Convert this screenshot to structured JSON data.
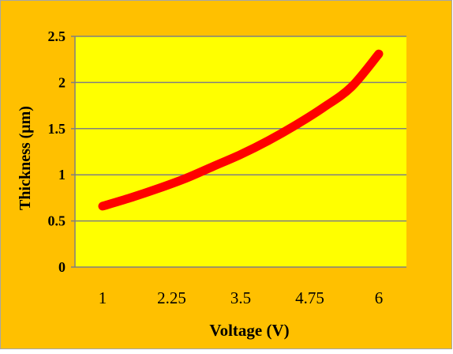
{
  "colors": {
    "chart_area": "#FFC000",
    "plot_area": "#FFFF00",
    "line": "#FF0000",
    "grid": "#808080",
    "border": "#A6A6A6",
    "text": "#000000"
  },
  "chart_data": {
    "type": "line",
    "xlabel": "Voltage (V)",
    "ylabel": "Thickness (μm)",
    "x_tick_labels": [
      "1",
      "2.25",
      "3.5",
      "4.75",
      "6"
    ],
    "y_tick_labels": [
      "0",
      "0.5",
      "1",
      "1.5",
      "2",
      "2.5"
    ],
    "ylim": [
      0,
      2.5
    ],
    "xlim": [
      0.5,
      6.5
    ],
    "grid": true,
    "legend": "none",
    "series": [
      {
        "x": [
          1,
          1.5,
          2,
          2.5,
          3,
          3.5,
          4,
          4.5,
          5,
          5.5,
          6
        ],
        "values": [
          0.66,
          0.75,
          0.85,
          0.96,
          1.09,
          1.22,
          1.37,
          1.54,
          1.73,
          1.95,
          2.31
        ]
      }
    ]
  }
}
